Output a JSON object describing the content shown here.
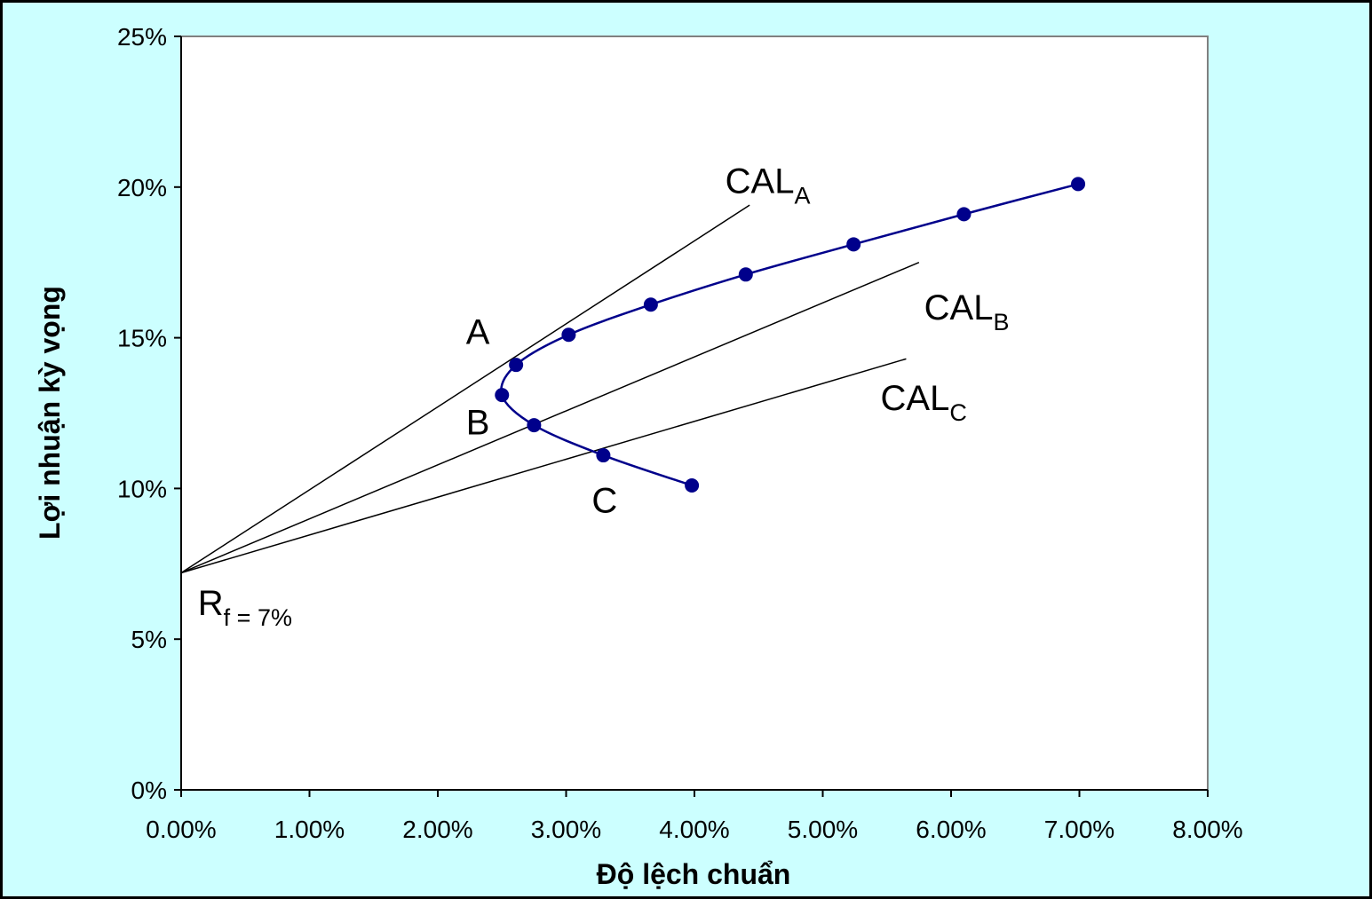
{
  "chart_data": {
    "type": "line",
    "xlabel": "Độ lệch chuẩn",
    "ylabel": "Lợi nhuận kỳ vọng",
    "xlim": [
      0,
      0.08
    ],
    "ylim": [
      0,
      0.25
    ],
    "x_ticks": [
      {
        "value": 0.0,
        "label": "0.00%"
      },
      {
        "value": 0.01,
        "label": "1.00%"
      },
      {
        "value": 0.02,
        "label": "2.00%"
      },
      {
        "value": 0.03,
        "label": "3.00%"
      },
      {
        "value": 0.04,
        "label": "4.00%"
      },
      {
        "value": 0.05,
        "label": "5.00%"
      },
      {
        "value": 0.06,
        "label": "6.00%"
      },
      {
        "value": 0.07,
        "label": "7.00%"
      },
      {
        "value": 0.08,
        "label": "8.00%"
      }
    ],
    "y_ticks": [
      {
        "value": 0.0,
        "label": "0%"
      },
      {
        "value": 0.05,
        "label": "5%"
      },
      {
        "value": 0.1,
        "label": "10%"
      },
      {
        "value": 0.15,
        "label": "15%"
      },
      {
        "value": 0.2,
        "label": "20%"
      },
      {
        "value": 0.25,
        "label": "25%"
      }
    ],
    "grid": false,
    "series": [
      {
        "color": "#00008b",
        "points": [
          {
            "x": 0.0398,
            "y": 0.101
          },
          {
            "x": 0.0329,
            "y": 0.111
          },
          {
            "x": 0.0275,
            "y": 0.121
          },
          {
            "x": 0.025,
            "y": 0.131
          },
          {
            "x": 0.0261,
            "y": 0.141
          },
          {
            "x": 0.0302,
            "y": 0.151
          },
          {
            "x": 0.0366,
            "y": 0.161
          },
          {
            "x": 0.044,
            "y": 0.171
          },
          {
            "x": 0.0524,
            "y": 0.181
          },
          {
            "x": 0.061,
            "y": 0.191
          },
          {
            "x": 0.0699,
            "y": 0.201
          }
        ]
      }
    ],
    "capital_allocation_lines": [
      {
        "name": "CAL_A",
        "start": {
          "x": 0,
          "y": 0.072
        },
        "end": {
          "x": 0.0443,
          "y": 0.194
        }
      },
      {
        "name": "CAL_B",
        "start": {
          "x": 0,
          "y": 0.072
        },
        "end": {
          "x": 0.0575,
          "y": 0.175
        }
      },
      {
        "name": "CAL_C",
        "start": {
          "x": 0,
          "y": 0.072
        },
        "end": {
          "x": 0.0565,
          "y": 0.143
        }
      }
    ],
    "annotations": [
      {
        "id": "a",
        "text": "A",
        "x": 0.0222,
        "y": 0.148
      },
      {
        "id": "b",
        "text": "B",
        "x": 0.0222,
        "y": 0.118
      },
      {
        "id": "c",
        "text": "C",
        "x": 0.032,
        "y": 0.092
      },
      {
        "id": "cal-a",
        "text": "CAL",
        "sub": "A",
        "x": 0.0424,
        "y": 0.198
      },
      {
        "id": "cal-b",
        "text": "CAL",
        "sub": "B",
        "x": 0.0579,
        "y": 0.156
      },
      {
        "id": "cal-c",
        "text": "CAL",
        "sub": "C",
        "x": 0.0545,
        "y": 0.126
      },
      {
        "id": "rf",
        "text": "R",
        "sub": "f = 7%",
        "x": 0.0013,
        "y": 0.058
      }
    ]
  }
}
